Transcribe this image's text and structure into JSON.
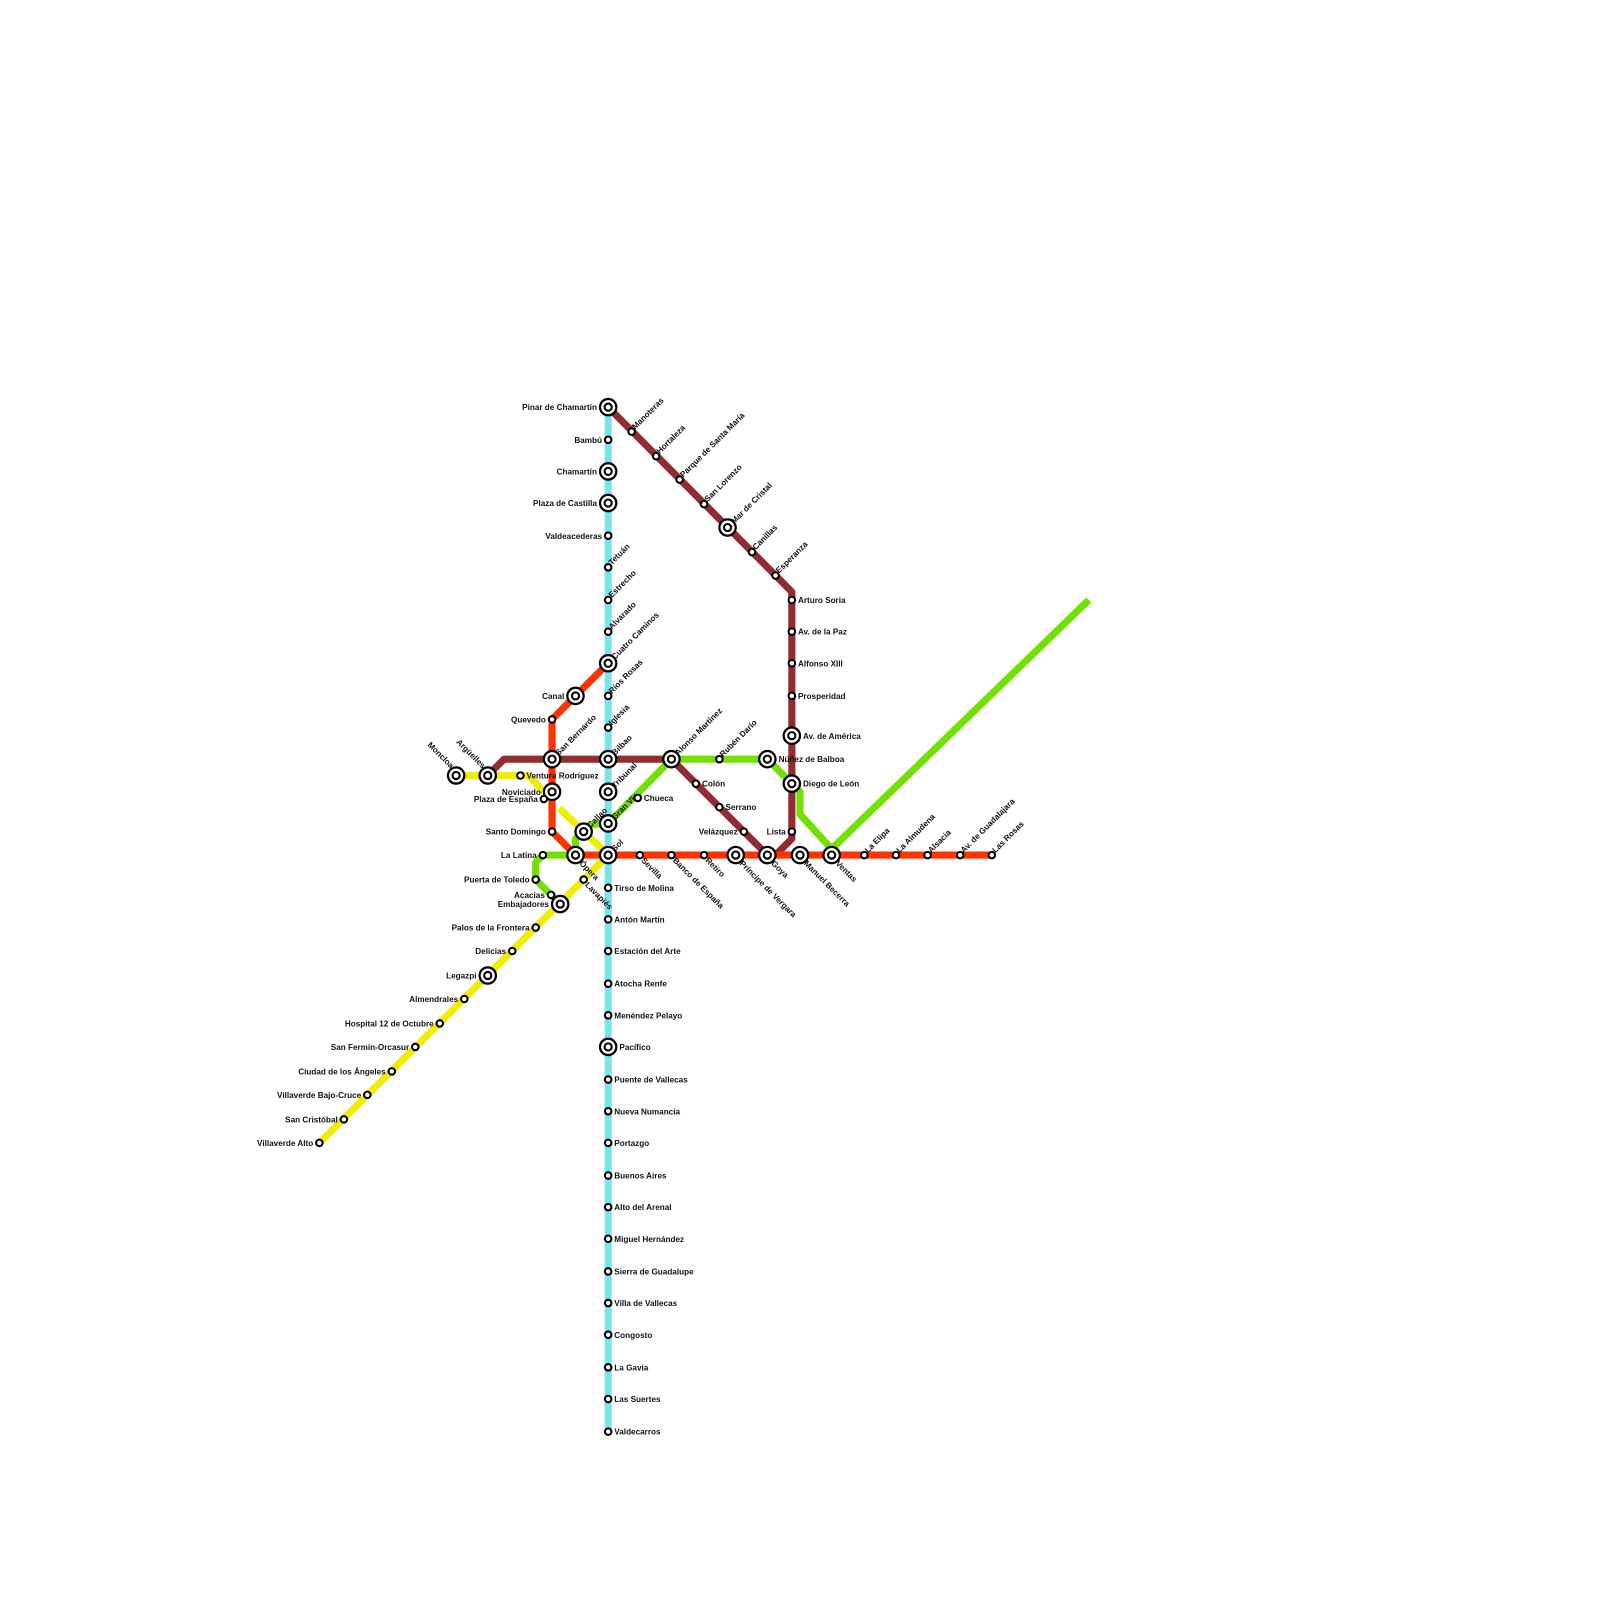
{
  "lines": [
    {
      "id": "cyan",
      "color": "#7de3ea"
    },
    {
      "id": "red",
      "color": "#ff3300"
    },
    {
      "id": "maroon",
      "color": "#922c30"
    },
    {
      "id": "yellow",
      "color": "#eeee00"
    },
    {
      "id": "green",
      "color": "#72e000"
    }
  ],
  "stations": [
    {
      "name": "Pinar de Chamartín",
      "interchange": true
    },
    {
      "name": "Bambú",
      "interchange": false
    },
    {
      "name": "Chamartín",
      "interchange": true
    },
    {
      "name": "Plaza de Castilla",
      "interchange": true
    },
    {
      "name": "Valdeacederas",
      "interchange": false
    },
    {
      "name": "Tetuán",
      "interchange": false
    },
    {
      "name": "Estrecho",
      "interchange": false
    },
    {
      "name": "Alvarado",
      "interchange": false
    },
    {
      "name": "Cuatro Caminos",
      "interchange": true
    },
    {
      "name": "Ríos Rosas",
      "interchange": false
    },
    {
      "name": "Iglesia",
      "interchange": false
    },
    {
      "name": "Bilbao",
      "interchange": true
    },
    {
      "name": "Tribunal",
      "interchange": true
    },
    {
      "name": "Gran Vía",
      "interchange": true
    },
    {
      "name": "Sol",
      "interchange": true
    },
    {
      "name": "Tirso de Molina",
      "interchange": false
    },
    {
      "name": "Antón Martín",
      "interchange": false
    },
    {
      "name": "Estación del Arte",
      "interchange": false
    },
    {
      "name": "Atocha Renfe",
      "interchange": false
    },
    {
      "name": "Menéndez Pelayo",
      "interchange": false
    },
    {
      "name": "Pacífico",
      "interchange": true
    },
    {
      "name": "Puente de Vallecas",
      "interchange": false
    },
    {
      "name": "Nueva Numancia",
      "interchange": false
    },
    {
      "name": "Portazgo",
      "interchange": false
    },
    {
      "name": "Buenos Aires",
      "interchange": false
    },
    {
      "name": "Alto del Arenal",
      "interchange": false
    },
    {
      "name": "Miguel Hernández",
      "interchange": false
    },
    {
      "name": "Sierra de Guadalupe",
      "interchange": false
    },
    {
      "name": "Villa de Vallecas",
      "interchange": false
    },
    {
      "name": "Congosto",
      "interchange": false
    },
    {
      "name": "La Gavia",
      "interchange": false
    },
    {
      "name": "Las Suertes",
      "interchange": false
    },
    {
      "name": "Valdecarros",
      "interchange": false
    },
    {
      "name": "Canal",
      "interchange": true
    },
    {
      "name": "Quevedo",
      "interchange": false
    },
    {
      "name": "San Bernardo",
      "interchange": true
    },
    {
      "name": "Noviciado",
      "interchange": true
    },
    {
      "name": "Santo Domingo",
      "interchange": false
    },
    {
      "name": "Ópera",
      "interchange": true
    },
    {
      "name": "Sevilla",
      "interchange": false
    },
    {
      "name": "Banco de España",
      "interchange": false
    },
    {
      "name": "Retiro",
      "interchange": false
    },
    {
      "name": "Príncipe de Vergara",
      "interchange": true
    },
    {
      "name": "Goya",
      "interchange": true
    },
    {
      "name": "Manuel Becerra",
      "interchange": true
    },
    {
      "name": "Ventas",
      "interchange": true
    },
    {
      "name": "La Elipa",
      "interchange": false
    },
    {
      "name": "La Almudena",
      "interchange": false
    },
    {
      "name": "Alsacia",
      "interchange": false
    },
    {
      "name": "Av. de Guadalajara",
      "interchange": false
    },
    {
      "name": "Las Rosas",
      "interchange": false
    },
    {
      "name": "Argüelles",
      "interchange": true
    },
    {
      "name": "Alonso Martínez",
      "interchange": true
    },
    {
      "name": "Colón",
      "interchange": false
    },
    {
      "name": "Serrano",
      "interchange": false
    },
    {
      "name": "Velázquez",
      "interchange": false
    },
    {
      "name": "Lista",
      "interchange": false
    },
    {
      "name": "Diego de León",
      "interchange": true
    },
    {
      "name": "Av. de América",
      "interchange": true
    },
    {
      "name": "Prosperidad",
      "interchange": false
    },
    {
      "name": "Alfonso XIII",
      "interchange": false
    },
    {
      "name": "Av. de la Paz",
      "interchange": false
    },
    {
      "name": "Arturo Soria",
      "interchange": false
    },
    {
      "name": "Esperanza",
      "interchange": false
    },
    {
      "name": "Canillas",
      "interchange": false
    },
    {
      "name": "Mar de Cristal",
      "interchange": true
    },
    {
      "name": "San Lorenzo",
      "interchange": false
    },
    {
      "name": "Parque de Santa María",
      "interchange": false
    },
    {
      "name": "Hortaleza",
      "interchange": false
    },
    {
      "name": "Manoteras",
      "interchange": false
    },
    {
      "name": "Moncloa",
      "interchange": true
    },
    {
      "name": "Ventura Rodríguez",
      "interchange": false
    },
    {
      "name": "Plaza de España",
      "interchange": false
    },
    {
      "name": "Callao",
      "interchange": true
    },
    {
      "name": "Lavapiés",
      "interchange": false
    },
    {
      "name": "Embajadores",
      "interchange": true
    },
    {
      "name": "Palos de la Frontera",
      "interchange": false
    },
    {
      "name": "Delicias",
      "interchange": false
    },
    {
      "name": "Legazpi",
      "interchange": true
    },
    {
      "name": "Almendrales",
      "interchange": false
    },
    {
      "name": "Hospital 12 de Octubre",
      "interchange": false
    },
    {
      "name": "San Fermín-Orcasur",
      "interchange": false
    },
    {
      "name": "Ciudad de los Ángeles",
      "interchange": false
    },
    {
      "name": "Villaverde Bajo-Cruce",
      "interchange": false
    },
    {
      "name": "San Cristóbal",
      "interchange": false
    },
    {
      "name": "Villaverde Alto",
      "interchange": false
    },
    {
      "name": "La Latina",
      "interchange": false
    },
    {
      "name": "Puerta de Toledo",
      "interchange": false
    },
    {
      "name": "Acacias",
      "interchange": false
    },
    {
      "name": "Chueca",
      "interchange": false
    },
    {
      "name": "Rubén Darío",
      "interchange": false
    },
    {
      "name": "Núñez de Balboa",
      "interchange": true
    }
  ]
}
